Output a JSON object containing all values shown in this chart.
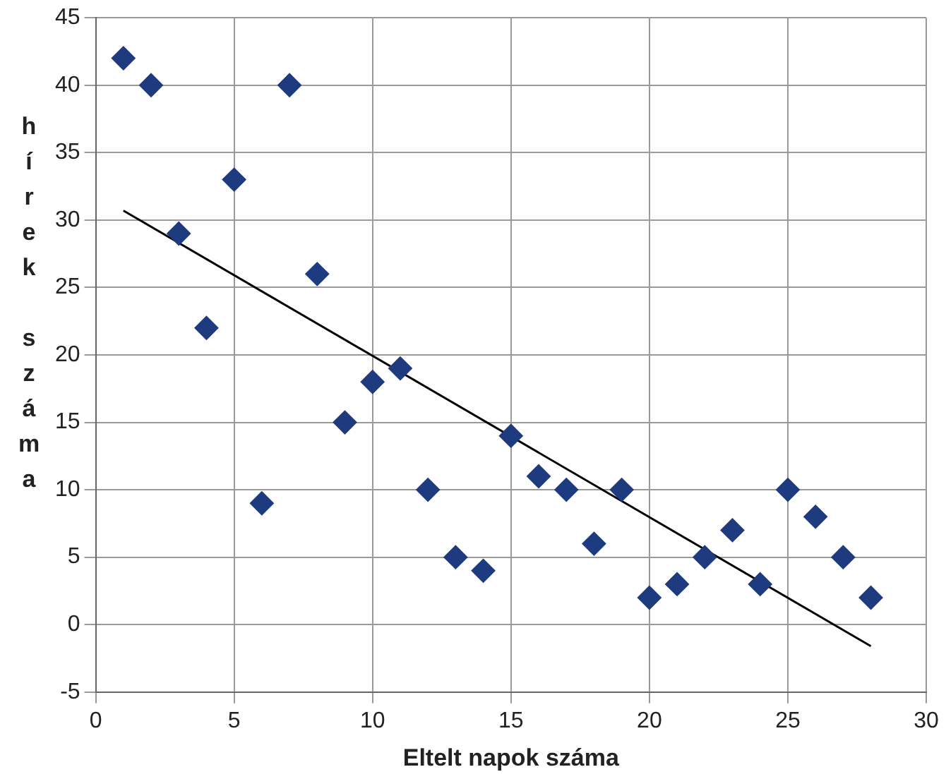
{
  "chart_data": {
    "type": "scatter",
    "xlabel": "Eltelt napok száma",
    "ylabel": "hírek száma",
    "xlim": [
      0,
      30
    ],
    "xticks": [
      0,
      5,
      10,
      15,
      20,
      25,
      30
    ],
    "ylim": [
      -5,
      45
    ],
    "yticks": [
      -5,
      0,
      5,
      10,
      15,
      20,
      25,
      30,
      35,
      40,
      45
    ],
    "grid": true,
    "legend": false,
    "marker": "diamond",
    "series": [
      {
        "color": "#1f3b7f",
        "x": [
          1,
          2,
          3,
          4,
          5,
          6,
          7,
          8,
          9,
          10,
          11,
          12,
          13,
          14,
          15,
          16,
          17,
          18,
          19,
          20,
          21,
          22,
          23,
          24,
          25,
          26,
          27,
          28
        ],
        "values": [
          42,
          40,
          29,
          22,
          33,
          9,
          40,
          26,
          15,
          18,
          19,
          10,
          5,
          4,
          14,
          11,
          10,
          6,
          10,
          2,
          3,
          5,
          7,
          3,
          10,
          8,
          5,
          2
        ]
      },
      {
        "type": "line",
        "color": "#000000",
        "marker": "none",
        "x": [
          1,
          28
        ],
        "values": [
          30.7,
          -1.6
        ]
      }
    ]
  }
}
